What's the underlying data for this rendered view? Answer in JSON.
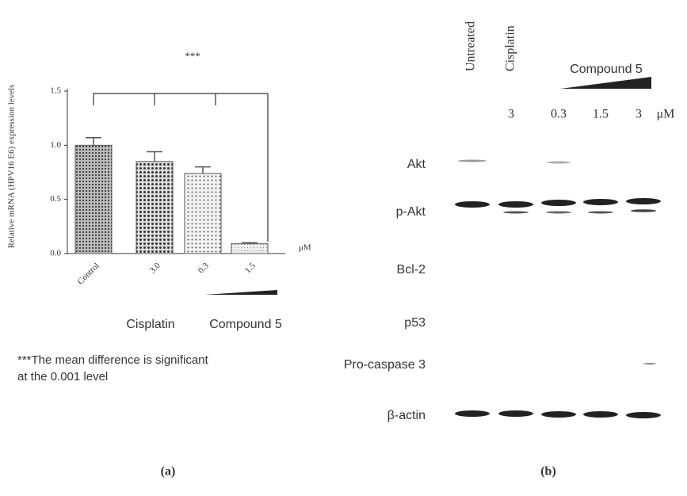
{
  "chart_data": {
    "type": "bar",
    "title": "***",
    "ylabel": "Relative mRNA (HPV16 E6) expression levels",
    "categories": [
      "Control",
      "3.0",
      "0.3",
      "1.5"
    ],
    "values": [
      1.0,
      0.85,
      0.74,
      0.09
    ],
    "errors": [
      0.07,
      0.09,
      0.06,
      0.01
    ],
    "color": "#555555",
    "ylim": [
      0,
      1.5
    ],
    "yticks": [
      {
        "value": 0,
        "label": "0.0"
      },
      {
        "value": 0.5,
        "label": "0.5"
      },
      {
        "value": 1,
        "label": "1.0"
      },
      {
        "value": 1.5,
        "label": "1.5"
      }
    ],
    "unit": "μM",
    "groups": [
      "Cisplatin",
      "Compound 5"
    ],
    "footnote": [
      "***The mean difference is significant",
      "at the 0.001 level"
    ],
    "panel": "(a)",
    "grid": false
  },
  "blot": {
    "lanes": [
      "Untreated",
      "Cisplatin"
    ],
    "treatment": "Compound 5",
    "doses": [
      "3",
      "0.3",
      "1.5",
      "3"
    ],
    "unit": "μM",
    "rows": [
      "Akt",
      "p-Akt",
      "Bcl-2",
      "p53",
      "Pro-caspase 3",
      "β-actin"
    ],
    "panel": "(b)"
  }
}
